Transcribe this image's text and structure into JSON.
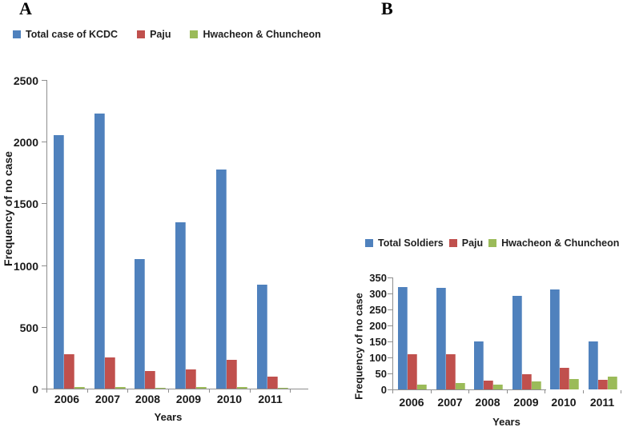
{
  "figure": {
    "background": "#ffffff"
  },
  "colors": {
    "axis": "#8e8e8e",
    "text": "#1a1a1a"
  },
  "chart_data": [
    {
      "panel_label": "A",
      "type": "bar",
      "categories": [
        "2006",
        "2007",
        "2008",
        "2009",
        "2010",
        "2011"
      ],
      "series": [
        {
          "name": "Total case of KCDC",
          "color": "#4F81BD",
          "pattern": "solid",
          "values": [
            2050,
            2230,
            1050,
            1350,
            1775,
            840
          ]
        },
        {
          "name": "Paju",
          "color": "#C0504D",
          "pattern": "speckled",
          "values": [
            280,
            250,
            145,
            155,
            230,
            95
          ]
        },
        {
          "name": "Hwacheon & Chuncheon",
          "color": "#9BBB59",
          "pattern": "solid",
          "values": [
            10,
            12,
            8,
            10,
            12,
            4
          ]
        }
      ],
      "xlabel": "Years",
      "ylabel": "Frequency of no case",
      "ylim": [
        0,
        2500
      ],
      "ytick_step": 500,
      "ytick_labels": [
        "0",
        "500",
        "1000",
        "1500",
        "2000",
        "2500"
      ],
      "legend_position": "top-left",
      "grid": false
    },
    {
      "panel_label": "B",
      "type": "bar",
      "categories": [
        "2006",
        "2007",
        "2008",
        "2009",
        "2010",
        "2011"
      ],
      "series": [
        {
          "name": "Total Soldiers",
          "color": "#4F81BD",
          "pattern": "solid",
          "values": [
            320,
            317,
            150,
            293,
            312,
            149
          ]
        },
        {
          "name": "Paju",
          "color": "#C0504D",
          "pattern": "speckled",
          "values": [
            110,
            110,
            28,
            48,
            68,
            30
          ]
        },
        {
          "name": "Hwacheon & Chuncheon",
          "color": "#9BBB59",
          "pattern": "solid",
          "values": [
            16,
            20,
            15,
            24,
            32,
            40
          ]
        }
      ],
      "xlabel": "Years",
      "ylabel": "Frequency of no case",
      "ylim": [
        0,
        350
      ],
      "ytick_step": 50,
      "ytick_labels": [
        "0",
        "50",
        "100",
        "150",
        "200",
        "250",
        "300",
        "350"
      ],
      "legend_position": "top-left",
      "grid": false
    }
  ]
}
